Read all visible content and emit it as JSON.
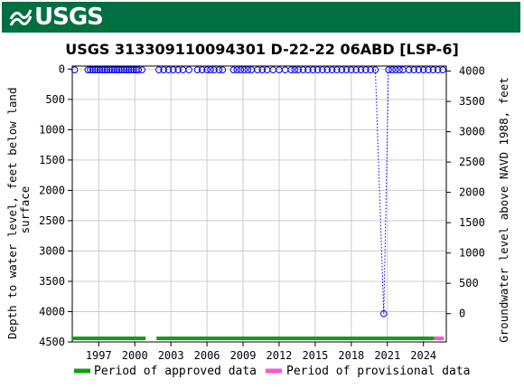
{
  "header": {
    "logo_text": "USGS",
    "brand_color": "#006f41"
  },
  "chart_data": {
    "type": "scatter",
    "title": "USGS 313309110094301 D-22-22 06ABD [LSP-6]",
    "ylabel_left_lines": [
      "Depth to water level, feet below land",
      "surface"
    ],
    "ylabel_right": "Groundwater level above NAVD 1988, feet",
    "x_range": [
      1994.8,
      2025.9
    ],
    "x_ticks": [
      1997,
      2000,
      2003,
      2006,
      2009,
      2012,
      2015,
      2018,
      2021,
      2024
    ],
    "y_left_range": [
      4500,
      -50
    ],
    "y_left_ticks": [
      0,
      500,
      1000,
      1500,
      2000,
      2500,
      3000,
      3500,
      4000,
      4500
    ],
    "y_right_ticks": [
      0,
      500,
      1000,
      1500,
      2000,
      2500,
      3000,
      3500,
      4000
    ],
    "y_right_offset": 4033,
    "grid": true,
    "marker_color": "#0000ff",
    "series": [
      {
        "points": [
          [
            1995.0,
            12
          ],
          [
            1996.1,
            12
          ],
          [
            1996.3,
            12
          ],
          [
            1996.5,
            12
          ],
          [
            1996.7,
            12
          ],
          [
            1996.9,
            12
          ],
          [
            1997.1,
            12
          ],
          [
            1997.3,
            12
          ],
          [
            1997.5,
            12
          ],
          [
            1997.7,
            12
          ],
          [
            1997.9,
            12
          ],
          [
            1998.1,
            12
          ],
          [
            1998.3,
            12
          ],
          [
            1998.5,
            12
          ],
          [
            1998.7,
            12
          ],
          [
            1998.9,
            12
          ],
          [
            1999.1,
            12
          ],
          [
            1999.3,
            12
          ],
          [
            1999.5,
            12
          ],
          [
            1999.7,
            12
          ],
          [
            1999.9,
            12
          ],
          [
            2000.1,
            12
          ],
          [
            2000.3,
            12
          ],
          [
            2000.6,
            12
          ],
          [
            2002.0,
            12
          ],
          [
            2002.4,
            12
          ],
          [
            2002.8,
            12
          ],
          [
            2003.2,
            12
          ],
          [
            2003.6,
            12
          ],
          [
            2004.0,
            12
          ],
          [
            2004.5,
            12
          ],
          [
            2005.2,
            12
          ],
          [
            2005.6,
            12
          ],
          [
            2006.0,
            12
          ],
          [
            2006.3,
            12
          ],
          [
            2006.6,
            12
          ],
          [
            2007.0,
            12
          ],
          [
            2007.3,
            12
          ],
          [
            2008.2,
            12
          ],
          [
            2008.5,
            12
          ],
          [
            2008.8,
            12
          ],
          [
            2009.1,
            12
          ],
          [
            2009.4,
            12
          ],
          [
            2009.7,
            12
          ],
          [
            2010.2,
            12
          ],
          [
            2010.6,
            12
          ],
          [
            2011.0,
            12
          ],
          [
            2011.5,
            12
          ],
          [
            2012.0,
            12
          ],
          [
            2012.5,
            12
          ],
          [
            2013.0,
            12
          ],
          [
            2013.3,
            12
          ],
          [
            2013.6,
            12
          ],
          [
            2014.0,
            12
          ],
          [
            2014.4,
            12
          ],
          [
            2014.8,
            12
          ],
          [
            2015.2,
            12
          ],
          [
            2015.6,
            12
          ],
          [
            2016.0,
            12
          ],
          [
            2016.4,
            12
          ],
          [
            2016.8,
            12
          ],
          [
            2017.2,
            12
          ],
          [
            2017.6,
            12
          ],
          [
            2018.0,
            12
          ],
          [
            2018.4,
            12
          ],
          [
            2018.8,
            12
          ],
          [
            2019.2,
            12
          ],
          [
            2019.6,
            12
          ],
          [
            2020.0,
            12
          ],
          [
            2020.7,
            4033
          ],
          [
            2021.1,
            12
          ],
          [
            2021.4,
            12
          ],
          [
            2021.7,
            12
          ],
          [
            2022.0,
            12
          ],
          [
            2022.3,
            12
          ],
          [
            2022.8,
            12
          ],
          [
            2023.2,
            12
          ],
          [
            2023.6,
            12
          ],
          [
            2024.0,
            12
          ],
          [
            2024.4,
            12
          ],
          [
            2024.8,
            12
          ],
          [
            2025.2,
            12
          ],
          [
            2025.6,
            12
          ]
        ]
      }
    ],
    "dotted_segment": [
      [
        2020.0,
        12
      ],
      [
        2020.7,
        4033
      ],
      [
        2021.1,
        12
      ]
    ],
    "approval_bars": [
      {
        "start": 1994.8,
        "end": 2000.9,
        "status": "approved"
      },
      {
        "start": 2001.8,
        "end": 2024.9,
        "status": "approved"
      },
      {
        "start": 2024.9,
        "end": 2025.7,
        "status": "provisional"
      }
    ],
    "legend": [
      {
        "label": "Period of approved data",
        "color": "#10a010"
      },
      {
        "label": "Period of provisional data",
        "color": "#ff55cc"
      }
    ]
  }
}
